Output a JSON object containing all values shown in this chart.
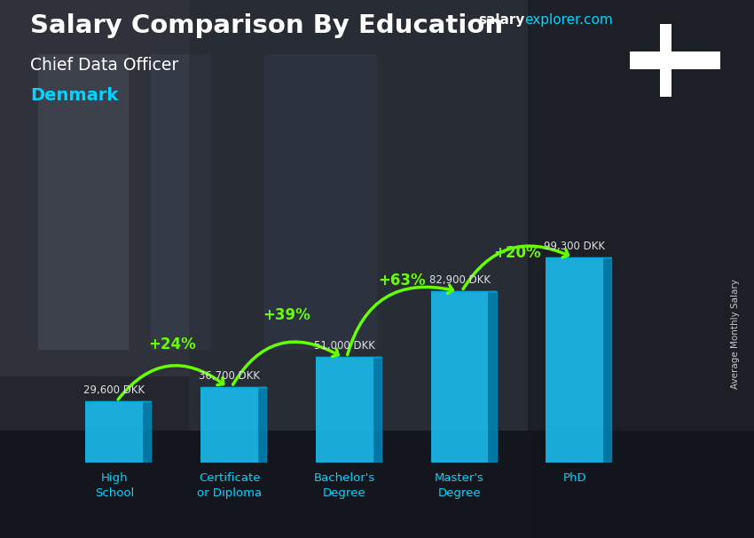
{
  "title_main": "Salary Comparison By Education",
  "title_sub": "Chief Data Officer",
  "title_country": "Denmark",
  "watermark_bold": "salary",
  "watermark_normal": "explorer.com",
  "ylabel": "Average Monthly Salary",
  "categories": [
    "High\nSchool",
    "Certificate\nor Diploma",
    "Bachelor's\nDegree",
    "Master's\nDegree",
    "PhD"
  ],
  "values": [
    29600,
    36700,
    51000,
    82900,
    99300
  ],
  "value_labels": [
    "29,600 DKK",
    "36,700 DKK",
    "51,000 DKK",
    "82,900 DKK",
    "99,300 DKK"
  ],
  "pct_labels": [
    "+24%",
    "+39%",
    "+63%",
    "+20%"
  ],
  "bar_color": "#1ab8e8",
  "bar_edge_color": "#0099cc",
  "bar_side_color": "#0088bb",
  "bg_color": "#4a5568",
  "text_color_white": "#ffffff",
  "text_color_cyan": "#00d4ff",
  "text_color_green": "#88ff00",
  "arrow_color": "#66ff00",
  "value_label_color": "#e0e0e0",
  "flag_red": "#c8102e",
  "flag_white": "#ffffff",
  "xlim": [
    -0.6,
    5.1
  ],
  "ylim": [
    0,
    130000
  ],
  "max_val": 110000,
  "bar_width": 0.5,
  "bar_positions": [
    0,
    1,
    2,
    3,
    4
  ]
}
